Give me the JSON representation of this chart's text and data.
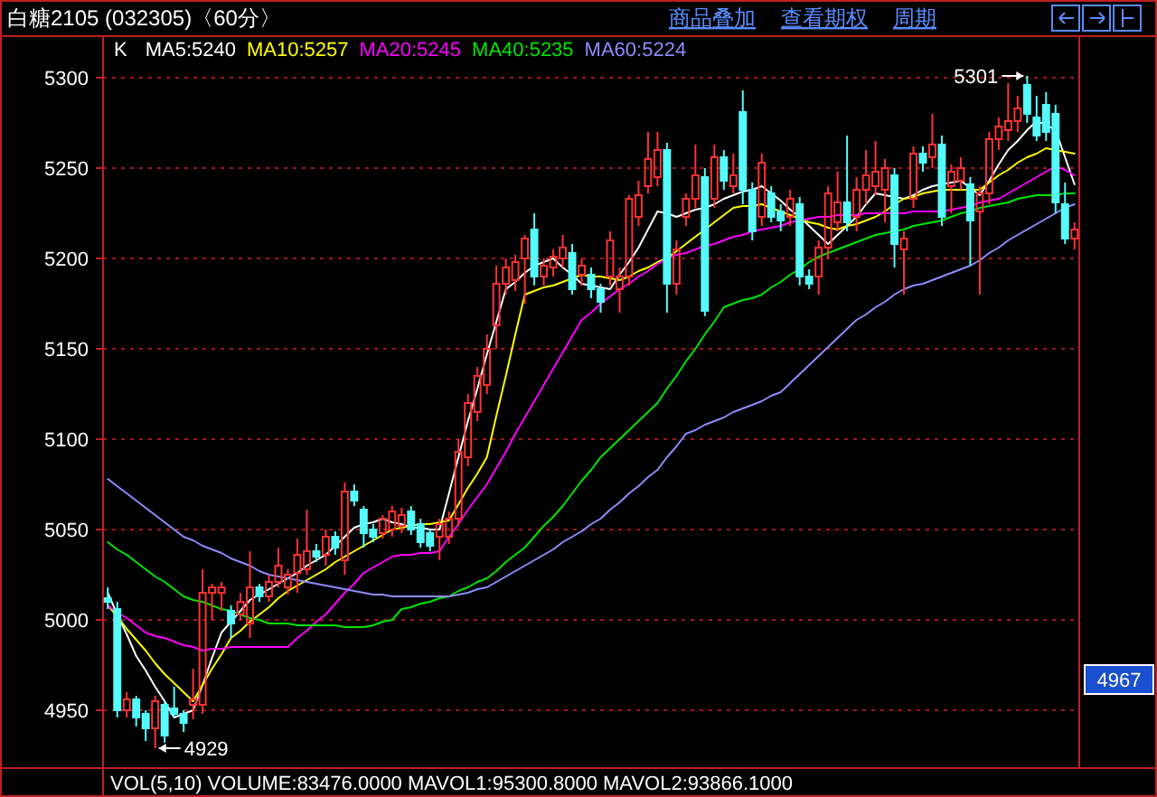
{
  "chart_data": {
    "type": "candlestick",
    "title": "白糖2105 (032305)〈60分〉",
    "legend_title": "K",
    "annotations": [
      "商品叠加",
      "查看期权",
      "周期",
      "VOL(5,10)  VOLUME:83476.0000  MAVOL1:95300.8000  MAVOL2:93866.1000",
      "5301",
      "4929",
      {
        "text": "4967",
        "y": 4967
      }
    ],
    "ylim": [
      4918,
      5323
    ],
    "yticks": [
      4950,
      5000,
      5050,
      5100,
      5150,
      5200,
      5250,
      5300
    ],
    "grid": "y",
    "categories": [
      null,
      null,
      null,
      null,
      null,
      null,
      null,
      null,
      null,
      null,
      null,
      null,
      null,
      null,
      null,
      null,
      null,
      null,
      null,
      null,
      null,
      null,
      null,
      null,
      null,
      null,
      null,
      null,
      null,
      null,
      null,
      null,
      null,
      null,
      null,
      null,
      null,
      null,
      null,
      null,
      null,
      null,
      null,
      null,
      null,
      null,
      null,
      null,
      null,
      null,
      null,
      null,
      null,
      null,
      null,
      null,
      null,
      null,
      null,
      null,
      null,
      null,
      null,
      null,
      null,
      null,
      null,
      null,
      null,
      null,
      null,
      null,
      null,
      null,
      null,
      null,
      null,
      null,
      null,
      null,
      null,
      null,
      null,
      null,
      null,
      null,
      null,
      null,
      null,
      null,
      null,
      null,
      null,
      null,
      null,
      null,
      null,
      null,
      null,
      null,
      null,
      null,
      null
    ],
    "ohlc": [
      [
        5012,
        5018,
        5006,
        5010
      ],
      [
        5006,
        5010,
        4946,
        4950
      ],
      [
        4950,
        4960,
        4946,
        4956
      ],
      [
        4956,
        4958,
        4941,
        4946
      ],
      [
        4948,
        4950,
        4933,
        4940
      ],
      [
        4940,
        4958,
        4929,
        4955
      ],
      [
        4953,
        4955,
        4932,
        4936
      ],
      [
        4951,
        4963,
        4946,
        4948
      ],
      [
        4948,
        4950,
        4938,
        4943
      ],
      [
        4953,
        4973,
        4945,
        4956
      ],
      [
        4953,
        5028,
        4948,
        5015
      ],
      [
        5015,
        5020,
        5000,
        5018
      ],
      [
        5015,
        5021,
        5005,
        5018
      ],
      [
        5005,
        5008,
        4990,
        4998
      ],
      [
        5003,
        5015,
        5000,
        5010
      ],
      [
        4998,
        5038,
        4990,
        5018
      ],
      [
        5018,
        5020,
        5010,
        5013
      ],
      [
        5013,
        5025,
        5010,
        5021
      ],
      [
        5021,
        5040,
        5018,
        5030
      ],
      [
        5018,
        5028,
        5014,
        5025
      ],
      [
        5026,
        5045,
        5015,
        5036
      ],
      [
        5028,
        5061,
        5025,
        5038
      ],
      [
        5038,
        5042,
        5032,
        5035
      ],
      [
        5036,
        5050,
        5030,
        5046
      ],
      [
        5046,
        5049,
        5036,
        5040
      ],
      [
        5033,
        5076,
        5025,
        5071
      ],
      [
        5071,
        5075,
        5063,
        5066
      ],
      [
        5061,
        5063,
        5040,
        5048
      ],
      [
        5050,
        5053,
        5043,
        5046
      ],
      [
        5048,
        5058,
        5045,
        5056
      ],
      [
        5050,
        5063,
        5046,
        5060
      ],
      [
        5052,
        5062,
        5048,
        5058
      ],
      [
        5060,
        5063,
        5047,
        5050
      ],
      [
        5053,
        5056,
        5040,
        5043
      ],
      [
        5048,
        5050,
        5038,
        5041
      ],
      [
        5046,
        5056,
        5033,
        5053
      ],
      [
        5046,
        5060,
        5042,
        5056
      ],
      [
        5056,
        5100,
        5052,
        5093
      ],
      [
        5090,
        5125,
        5085,
        5120
      ],
      [
        5115,
        5140,
        5110,
        5135
      ],
      [
        5130,
        5158,
        5125,
        5150
      ],
      [
        5163,
        5196,
        5150,
        5186
      ],
      [
        5186,
        5200,
        5180,
        5195
      ],
      [
        5188,
        5202,
        5182,
        5198
      ],
      [
        5200,
        5213,
        5175,
        5211
      ],
      [
        5216,
        5225,
        5185,
        5190
      ],
      [
        5190,
        5200,
        5185,
        5196
      ],
      [
        5195,
        5205,
        5190,
        5201
      ],
      [
        5200,
        5213,
        5195,
        5206
      ],
      [
        5203,
        5208,
        5180,
        5183
      ],
      [
        5191,
        5200,
        5185,
        5196
      ],
      [
        5191,
        5195,
        5178,
        5183
      ],
      [
        5183,
        5186,
        5170,
        5176
      ],
      [
        5190,
        5215,
        5185,
        5210
      ],
      [
        5183,
        5195,
        5170,
        5190
      ],
      [
        5190,
        5235,
        5185,
        5233
      ],
      [
        5223,
        5243,
        5218,
        5235
      ],
      [
        5240,
        5270,
        5236,
        5255
      ],
      [
        5245,
        5270,
        5240,
        5260
      ],
      [
        5260,
        5264,
        5170,
        5186
      ],
      [
        5186,
        5210,
        5180,
        5205
      ],
      [
        5223,
        5236,
        5218,
        5233
      ],
      [
        5233,
        5263,
        5228,
        5246
      ],
      [
        5245,
        5250,
        5168,
        5171
      ],
      [
        5233,
        5263,
        5228,
        5256
      ],
      [
        5256,
        5260,
        5238,
        5243
      ],
      [
        5240,
        5258,
        5236,
        5246
      ],
      [
        5281,
        5293,
        5230,
        5238
      ],
      [
        5238,
        5242,
        5210,
        5215
      ],
      [
        5223,
        5258,
        5218,
        5253
      ],
      [
        5236,
        5240,
        5220,
        5223
      ],
      [
        5226,
        5230,
        5215,
        5221
      ],
      [
        5223,
        5238,
        5218,
        5233
      ],
      [
        5230,
        5234,
        5185,
        5190
      ],
      [
        5190,
        5194,
        5183,
        5186
      ],
      [
        5190,
        5210,
        5180,
        5206
      ],
      [
        5206,
        5240,
        5200,
        5236
      ],
      [
        5220,
        5248,
        5215,
        5231
      ],
      [
        5231,
        5268,
        5215,
        5220
      ],
      [
        5223,
        5245,
        5215,
        5238
      ],
      [
        5238,
        5260,
        5230,
        5246
      ],
      [
        5240,
        5265,
        5235,
        5248
      ],
      [
        5238,
        5255,
        5220,
        5250
      ],
      [
        5246,
        5250,
        5195,
        5208
      ],
      [
        5205,
        5215,
        5180,
        5211
      ],
      [
        5233,
        5262,
        5228,
        5258
      ],
      [
        5258,
        5262,
        5248,
        5253
      ],
      [
        5256,
        5280,
        5250,
        5263
      ],
      [
        5263,
        5268,
        5218,
        5223
      ],
      [
        5240,
        5252,
        5225,
        5248
      ],
      [
        5243,
        5256,
        5238,
        5250
      ],
      [
        5241,
        5245,
        5196,
        5221
      ],
      [
        5226,
        5240,
        5180,
        5236
      ],
      [
        5236,
        5270,
        5230,
        5266
      ],
      [
        5266,
        5278,
        5260,
        5273
      ],
      [
        5271,
        5297,
        5265,
        5276
      ],
      [
        5276,
        5290,
        5270,
        5283
      ],
      [
        5296,
        5301,
        5275,
        5280
      ],
      [
        5278,
        5290,
        5265,
        5268
      ],
      [
        5285,
        5292,
        5265,
        5270
      ],
      [
        5280,
        5285,
        5225,
        5231
      ],
      [
        5230,
        5242,
        5208,
        5211
      ],
      [
        5211,
        5220,
        5205,
        5216
      ]
    ],
    "colors": [
      "#54fcfc",
      "#54fcfc",
      "#ff3232",
      "#54fcfc",
      "#54fcfc",
      "#ff3232",
      "#54fcfc",
      "#54fcfc",
      "#54fcfc",
      "#ff3232",
      "#ff3232",
      "#ff3232",
      "#ff3232",
      "#54fcfc",
      "#ff3232",
      "#ff3232",
      "#54fcfc",
      "#ff3232",
      "#ff3232",
      "#ff3232",
      "#ff3232",
      "#ff3232",
      "#54fcfc",
      "#ff3232",
      "#54fcfc",
      "#ff3232",
      "#54fcfc",
      "#54fcfc",
      "#54fcfc",
      "#ff3232",
      "#ff3232",
      "#ff3232",
      "#54fcfc",
      "#54fcfc",
      "#54fcfc",
      "#ff3232",
      "#ff3232",
      "#ff3232",
      "#ff3232",
      "#ff3232",
      "#ff3232",
      "#ff3232",
      "#ff3232",
      "#ff3232",
      "#ff3232",
      "#54fcfc",
      "#ff3232",
      "#ff3232",
      "#ff3232",
      "#54fcfc",
      "#ff3232",
      "#54fcfc",
      "#54fcfc",
      "#ff3232",
      "#ff3232",
      "#ff3232",
      "#ff3232",
      "#ff3232",
      "#ff3232",
      "#54fcfc",
      "#ff3232",
      "#ff3232",
      "#ff3232",
      "#54fcfc",
      "#ff3232",
      "#54fcfc",
      "#ff3232",
      "#54fcfc",
      "#54fcfc",
      "#ff3232",
      "#54fcfc",
      "#54fcfc",
      "#ff3232",
      "#54fcfc",
      "#54fcfc",
      "#ff3232",
      "#ff3232",
      "#ff3232",
      "#54fcfc",
      "#ff3232",
      "#ff3232",
      "#ff3232",
      "#ff3232",
      "#54fcfc",
      "#ff3232",
      "#ff3232",
      "#54fcfc",
      "#ff3232",
      "#54fcfc",
      "#ff3232",
      "#ff3232",
      "#54fcfc",
      "#ff3232",
      "#ff3232",
      "#ff3232",
      "#ff3232",
      "#ff3232",
      "#54fcfc",
      "#54fcfc",
      "#54fcfc",
      "#54fcfc",
      "#54fcfc",
      "#ff3232"
    ],
    "series": [
      {
        "type": "line",
        "name": "MA5:5240",
        "color": "#ffffff",
        "values": [
          5015,
          5003,
          4992,
          4980,
          4972,
          4963,
          4955,
          4946,
          4948,
          4950,
          4964,
          4979,
          4993,
          4999,
          5005,
          5011,
          5014,
          5017,
          5020,
          5023,
          5026,
          5030,
          5033,
          5036,
          5041,
          5046,
          5051,
          5053,
          5054,
          5056,
          5054,
          5053,
          5051,
          5051,
          5050,
          5050,
          5070,
          5090,
          5110,
          5128,
          5147,
          5165,
          5183,
          5187,
          5192,
          5196,
          5198,
          5200,
          5195,
          5191,
          5186,
          5185,
          5184,
          5183,
          5191,
          5198,
          5206,
          5216,
          5226,
          5225,
          5223,
          5225,
          5227,
          5228,
          5230,
          5233,
          5235,
          5237,
          5238,
          5240,
          5236,
          5232,
          5227,
          5223,
          5218,
          5213,
          5208,
          5213,
          5218,
          5223,
          5230,
          5236,
          5235,
          5234,
          5233,
          5235,
          5238,
          5240,
          5241,
          5242,
          5243,
          5239,
          5235,
          5243,
          5252,
          5260,
          5265,
          5271,
          5276,
          5274,
          5271,
          5256,
          5241
        ]
      },
      {
        "type": "line",
        "name": "MA10:5257",
        "color": "#ffff00",
        "values": [
          5008,
          5002,
          4995,
          4989,
          4983,
          4976,
          4970,
          4965,
          4960,
          4955,
          4964,
          4973,
          4981,
          4990,
          4994,
          4999,
          5003,
          5007,
          5012,
          5016,
          5019,
          5022,
          5025,
          5028,
          5032,
          5035,
          5038,
          5041,
          5044,
          5047,
          5050,
          5051,
          5052,
          5053,
          5053,
          5054,
          5055,
          5064,
          5073,
          5081,
          5090,
          5113,
          5135,
          5158,
          5180,
          5182,
          5184,
          5185,
          5187,
          5189,
          5191,
          5190,
          5190,
          5189,
          5188,
          5190,
          5193,
          5195,
          5198,
          5200,
          5204,
          5208,
          5212,
          5216,
          5220,
          5224,
          5228,
          5229,
          5229,
          5230,
          5228,
          5226,
          5224,
          5222,
          5220,
          5219,
          5217,
          5216,
          5218,
          5219,
          5221,
          5223,
          5226,
          5230,
          5233,
          5234,
          5236,
          5237,
          5238,
          5238,
          5238,
          5238,
          5238,
          5242,
          5246,
          5249,
          5253,
          5256,
          5258,
          5261,
          5260,
          5259,
          5258
        ]
      },
      {
        "type": "line",
        "name": "MA20:5245",
        "color": "#ff00ff",
        "values": [
          5008,
          5004,
          5001,
          4997,
          4993,
          4991,
          4990,
          4988,
          4986,
          4985,
          4983,
          4984,
          4984,
          4985,
          4985,
          4985,
          4985,
          4985,
          4985,
          4985,
          4990,
          4994,
          4999,
          5003,
          5009,
          5015,
          5020,
          5026,
          5029,
          5032,
          5035,
          5036,
          5036,
          5037,
          5037,
          5038,
          5046,
          5053,
          5061,
          5068,
          5075,
          5084,
          5093,
          5103,
          5112,
          5121,
          5130,
          5139,
          5148,
          5157,
          5166,
          5170,
          5175,
          5179,
          5183,
          5186,
          5190,
          5193,
          5197,
          5200,
          5202,
          5203,
          5205,
          5207,
          5208,
          5210,
          5212,
          5213,
          5215,
          5216,
          5217,
          5218,
          5220,
          5221,
          5222,
          5223,
          5223,
          5224,
          5224,
          5224,
          5225,
          5225,
          5225,
          5225,
          5225,
          5226,
          5226,
          5226,
          5226,
          5227,
          5228,
          5229,
          5231,
          5232,
          5233,
          5236,
          5239,
          5242,
          5245,
          5248,
          5251,
          5249,
          5246
        ]
      },
      {
        "type": "line",
        "name": "MA40:5235",
        "color": "#00e600",
        "values": [
          5043,
          5039,
          5036,
          5032,
          5028,
          5024,
          5021,
          5017,
          5013,
          5011,
          5010,
          5008,
          5006,
          5005,
          5003,
          5001,
          5000,
          4998,
          4998,
          4998,
          4997,
          4997,
          4997,
          4997,
          4997,
          4996,
          4996,
          4996,
          4997,
          4999,
          5000,
          5006,
          5007,
          5009,
          5010,
          5012,
          5013,
          5016,
          5018,
          5021,
          5023,
          5027,
          5032,
          5036,
          5040,
          5046,
          5052,
          5057,
          5063,
          5070,
          5077,
          5083,
          5090,
          5095,
          5100,
          5105,
          5110,
          5115,
          5120,
          5128,
          5135,
          5143,
          5150,
          5158,
          5165,
          5173,
          5175,
          5177,
          5178,
          5180,
          5184,
          5187,
          5191,
          5194,
          5198,
          5201,
          5203,
          5205,
          5207,
          5209,
          5211,
          5213,
          5214,
          5215,
          5216,
          5218,
          5219,
          5220,
          5221,
          5223,
          5225,
          5226,
          5228,
          5229,
          5230,
          5231,
          5233,
          5234,
          5235,
          5235,
          5235,
          5236,
          5236
        ]
      },
      {
        "type": "line",
        "name": "MA60:5224",
        "color": "#8c8cff",
        "values": [
          5078,
          5074,
          5070,
          5066,
          5062,
          5058,
          5054,
          5050,
          5046,
          5044,
          5041,
          5039,
          5037,
          5034,
          5032,
          5030,
          5027,
          5025,
          5024,
          5023,
          5022,
          5021,
          5020,
          5019,
          5018,
          5017,
          5016,
          5015,
          5014,
          5014,
          5013,
          5013,
          5013,
          5013,
          5013,
          5013,
          5013,
          5014,
          5015,
          5017,
          5018,
          5021,
          5024,
          5027,
          5030,
          5033,
          5036,
          5039,
          5043,
          5046,
          5049,
          5053,
          5056,
          5061,
          5065,
          5070,
          5074,
          5079,
          5083,
          5090,
          5096,
          5103,
          5105,
          5108,
          5110,
          5112,
          5115,
          5117,
          5119,
          5121,
          5124,
          5126,
          5131,
          5136,
          5141,
          5146,
          5151,
          5156,
          5161,
          5166,
          5169,
          5173,
          5176,
          5180,
          5183,
          5185,
          5186,
          5188,
          5190,
          5192,
          5194,
          5196,
          5199,
          5203,
          5206,
          5210,
          5213,
          5216,
          5219,
          5222,
          5225,
          5228,
          5230
        ]
      }
    ]
  }
}
